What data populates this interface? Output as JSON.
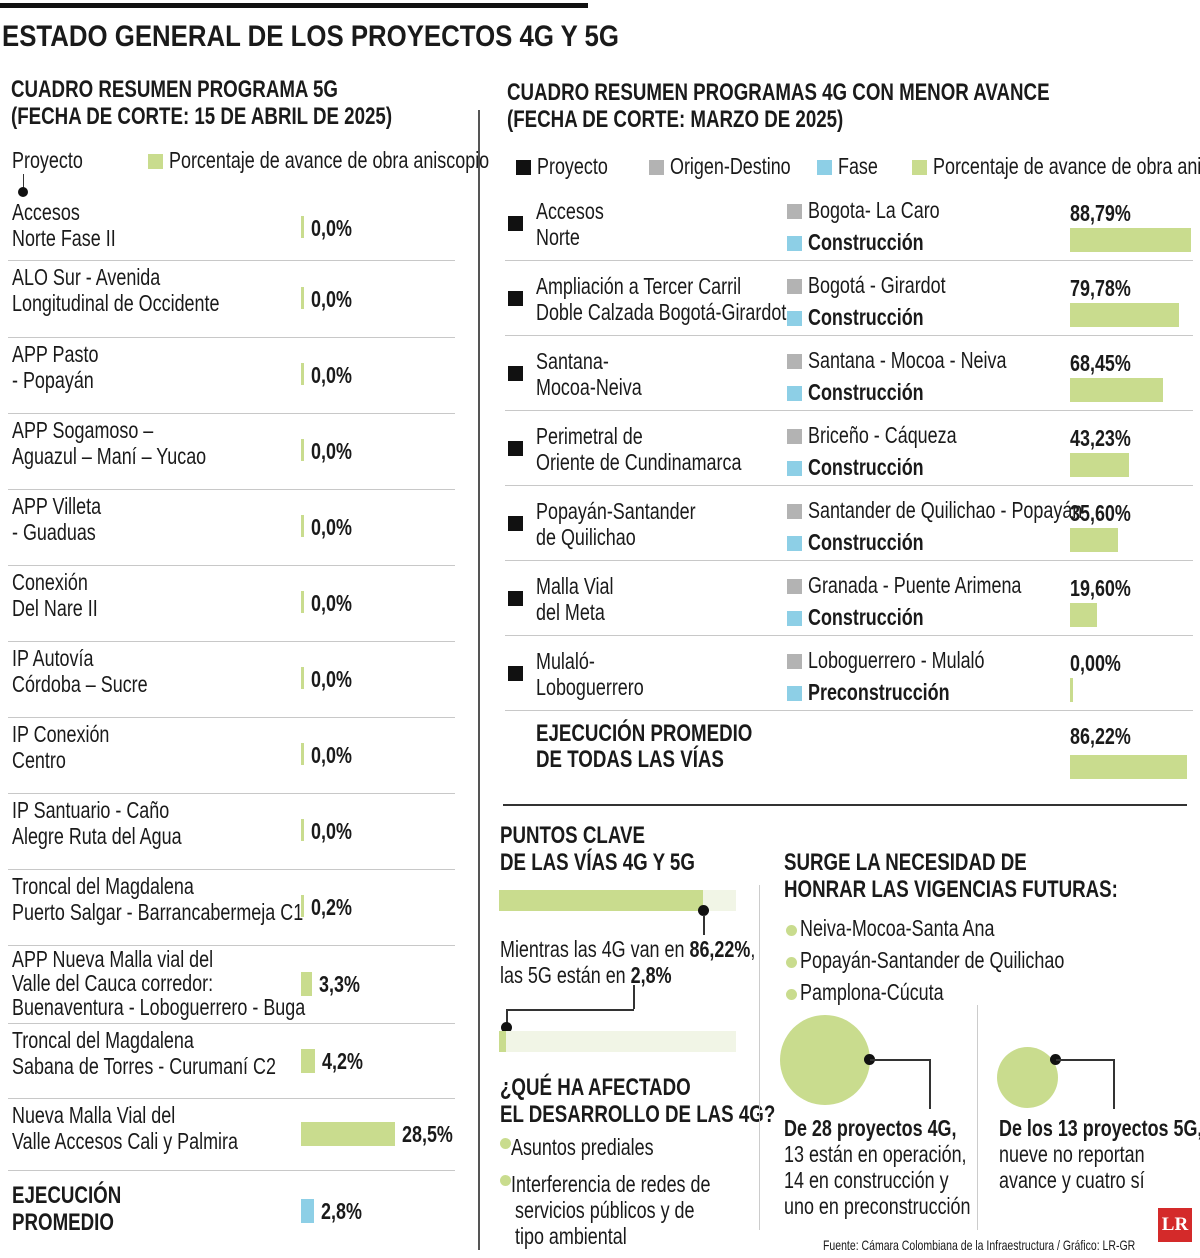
{
  "title": "ESTADO GENERAL DE LOS PROYECTOS 4G Y 5G",
  "colors": {
    "green": "#c9dc8e",
    "blue": "#8dcfe6",
    "grey": "#b3b3b3",
    "black": "#111111",
    "lr_red": "#d42a2a"
  },
  "chart_data": [
    {
      "type": "bar",
      "title": "CUADRO RESUMEN PROGRAMA 5G",
      "subtitle": "(FECHA DE CORTE: 15 DE ABRIL DE 2025)",
      "legend": {
        "project": "Proyecto",
        "series": "Porcentaje de avance de obra aniscopio"
      },
      "rows": [
        {
          "name": [
            "Accesos",
            "Norte Fase II"
          ],
          "value": 0.0,
          "label": "0,0%"
        },
        {
          "name": [
            "ALO Sur - Avenida",
            "Longitudinal de Occidente"
          ],
          "value": 0.0,
          "label": "0,0%"
        },
        {
          "name": [
            "APP Pasto",
            "- Popayán"
          ],
          "value": 0.0,
          "label": "0,0%"
        },
        {
          "name": [
            "APP Sogamoso –",
            "Aguazul – Maní – Yucao"
          ],
          "value": 0.0,
          "label": "0,0%"
        },
        {
          "name": [
            "APP Villeta",
            "- Guaduas"
          ],
          "value": 0.0,
          "label": "0,0%"
        },
        {
          "name": [
            "Conexión",
            "Del Nare II"
          ],
          "value": 0.0,
          "label": "0,0%"
        },
        {
          "name": [
            "IP Autovía",
            "Córdoba – Sucre"
          ],
          "value": 0.0,
          "label": "0,0%"
        },
        {
          "name": [
            "IP Conexión",
            "Centro"
          ],
          "value": 0.0,
          "label": "0,0%"
        },
        {
          "name": [
            "IP Santuario - Caño",
            "Alegre Ruta del Agua"
          ],
          "value": 0.0,
          "label": "0,0%"
        },
        {
          "name": [
            "Troncal del Magdalena",
            "Puerto Salgar - Barrancabermeja C1"
          ],
          "value": 0.2,
          "label": "0,2%"
        },
        {
          "name": [
            "APP Nueva Malla vial del",
            "Valle del Cauca corredor:",
            "Buenaventura - Loboguerrero - Buga"
          ],
          "value": 3.3,
          "label": "3,3%"
        },
        {
          "name": [
            "Troncal del Magdalena",
            "Sabana de Torres - Curumaní C2"
          ],
          "value": 4.2,
          "label": "4,2%"
        },
        {
          "name": [
            "Nueva Malla Vial del",
            "Valle Accesos Cali y Palmira"
          ],
          "value": 28.5,
          "label": "28,5%"
        }
      ],
      "average": {
        "name": [
          "EJECUCIÓN",
          "PROMEDIO"
        ],
        "value": 2.8,
        "label": "2,8%"
      }
    },
    {
      "type": "bar",
      "title": "CUADRO RESUMEN PROGRAMAS 4G CON MENOR AVANCE",
      "subtitle": "(FECHA DE CORTE: MARZO DE 2025)",
      "legend": {
        "project": "Proyecto",
        "od": "Origen-Destino",
        "phase": "Fase",
        "series": "Porcentaje de avance de obra aniscopio"
      },
      "rows": [
        {
          "name": [
            "Accesos",
            "Norte"
          ],
          "od": "Bogota- La Caro",
          "phase": "Construcción",
          "value": 88.79,
          "label": "88,79%"
        },
        {
          "name": [
            "Ampliación a Tercer Carril",
            "Doble Calzada Bogotá-Girardot"
          ],
          "od": "Bogotá - Girardot",
          "phase": "Construcción",
          "value": 79.78,
          "label": "79,78%"
        },
        {
          "name": [
            "Santana-",
            "Mocoa-Neiva"
          ],
          "od": "Santana - Mocoa - Neiva",
          "phase": "Construcción",
          "value": 68.45,
          "label": "68,45%"
        },
        {
          "name": [
            "Perimetral de",
            "Oriente de Cundinamarca"
          ],
          "od": "Briceño - Cáqueza",
          "phase": "Construcción",
          "value": 43.23,
          "label": "43,23%"
        },
        {
          "name": [
            "Popayán-Santander",
            "de Quilichao"
          ],
          "od": "Santander de Quilichao - Popayán",
          "phase": "Construcción",
          "value": 35.6,
          "label": "35,60%"
        },
        {
          "name": [
            "Malla Vial",
            "del Meta"
          ],
          "od": "Granada - Puente Arimena",
          "phase": "Construcción",
          "value": 19.6,
          "label": "19,60%"
        },
        {
          "name": [
            "Mulaló-",
            "Loboguerrero"
          ],
          "od": "Loboguerrero - Mulaló",
          "phase": "Preconstrucción",
          "value": 0.0,
          "label": "0,00%"
        }
      ],
      "average": {
        "name": [
          "EJECUCIÓN PROMEDIO",
          "DE TODAS LAS VÍAS"
        ],
        "value": 86.22,
        "label": "86,22%"
      }
    }
  ],
  "key_points": {
    "title": [
      "PUNTOS CLAVE",
      "DE LAS VÍAS 4G Y 5G"
    ],
    "bar_4g": 86.22,
    "bar_5g": 2.8,
    "text1_a": "Mientras las 4G van en ",
    "text1_b": "86,22%",
    "text1_c": ",",
    "text2_a": "las 5G están en ",
    "text2_b": "2,8%",
    "affected_title": [
      "¿QUÉ HA AFECTADO",
      "EL DESARROLLO DE LAS 4G?"
    ],
    "affected_items": [
      "Asuntos prediales",
      "Interferencia de redes de",
      "servicios públicos y de",
      "tipo ambiental"
    ]
  },
  "futures": {
    "title": [
      "SURGE LA NECESIDAD DE",
      "HONRAR LAS VIGENCIAS FUTURAS:"
    ],
    "items": [
      "Neiva-Mocoa-Santa Ana",
      "Popayán-Santander de Quilichao",
      "Pamplona-Cúcuta"
    ],
    "stat4g": [
      "De 28 proyectos 4G,",
      "13 están en operación,",
      "14 en construcción y",
      "uno en preconstrucción"
    ],
    "stat5g": [
      "De los 13 proyectos 5G,",
      "nueve no reportan",
      "avance y cuatro sí"
    ]
  },
  "source": "Fuente: Cámara Colombiana de la Infraestructura / Gráfico: LR-GR",
  "logo": "LR"
}
